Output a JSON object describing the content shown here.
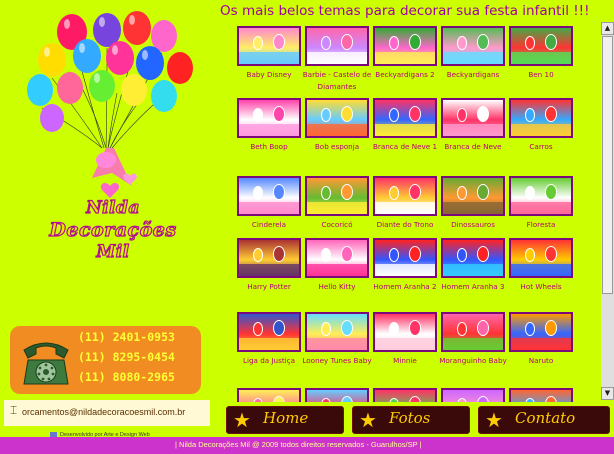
{
  "header": {
    "title": "Os mais belos temas para decorar sua festa infantil !!!"
  },
  "logo": {
    "line1": "Nilda",
    "line2": "Decorações",
    "line3": "Mil"
  },
  "contact": {
    "phones": [
      "(11) 2401-0953",
      "(11) 8295-0454",
      "(11) 8080-2965"
    ],
    "email": "orcamentos@nildadecoracoesmil.com.br",
    "developer_credit": "Desenvolvido por Arte e Design Web"
  },
  "gallery": {
    "themes": [
      {
        "label": "Baby Disney",
        "icon": "photo-icon"
      },
      {
        "label": "Barbie - Castelo de Diamantes",
        "icon": "photo-icon"
      },
      {
        "label": "Beckyardigans 2",
        "icon": "photo-icon"
      },
      {
        "label": "Beckyardigans",
        "icon": "photo-icon"
      },
      {
        "label": "Ben 10",
        "icon": "photo-icon"
      },
      {
        "label": "Beth Boop",
        "icon": "photo-icon"
      },
      {
        "label": "Bob esponja",
        "icon": "photo-icon"
      },
      {
        "label": "Branca de Neve 1",
        "icon": "photo-icon"
      },
      {
        "label": "Branca de Neve",
        "icon": "photo-icon"
      },
      {
        "label": "Carros",
        "icon": "photo-icon"
      },
      {
        "label": "Cinderela",
        "icon": "photo-icon"
      },
      {
        "label": "Cocoricó",
        "icon": "photo-icon"
      },
      {
        "label": "Diante do Trono",
        "icon": "photo-icon"
      },
      {
        "label": "Dinossauros",
        "icon": "photo-icon"
      },
      {
        "label": "Floresta",
        "icon": "photo-icon"
      },
      {
        "label": "Harry Potter",
        "icon": "photo-icon"
      },
      {
        "label": "Hello Kitty",
        "icon": "photo-icon"
      },
      {
        "label": "Homem Aranha 2",
        "icon": "photo-icon"
      },
      {
        "label": "Homem Aranha 3",
        "icon": "photo-icon"
      },
      {
        "label": "Hot Wheels",
        "icon": "photo-icon"
      },
      {
        "label": "Liga da Justiça",
        "icon": "photo-icon"
      },
      {
        "label": "Looney Tunes Baby",
        "icon": "photo-icon"
      },
      {
        "label": "Minnie",
        "icon": "photo-icon"
      },
      {
        "label": "Moranguinho Baby",
        "icon": "photo-icon"
      },
      {
        "label": "Naruto",
        "icon": "photo-icon"
      },
      {
        "label": "",
        "icon": "photo-icon"
      },
      {
        "label": "",
        "icon": "photo-icon"
      },
      {
        "label": "",
        "icon": "photo-icon"
      },
      {
        "label": "",
        "icon": "photo-icon"
      },
      {
        "label": "",
        "icon": "photo-icon"
      }
    ]
  },
  "nav": {
    "home": "Home",
    "fotos": "Fotos",
    "contato": "Contato"
  },
  "footer": {
    "text": "| Nilda Decorações Mil @ 2009 todos direitos reservados - Guarulhos/SP |"
  },
  "colors": {
    "background": "#ccff00",
    "accent_purple": "#a000a0",
    "footer": "#cc33cc",
    "phone_box": "#f08c22"
  }
}
